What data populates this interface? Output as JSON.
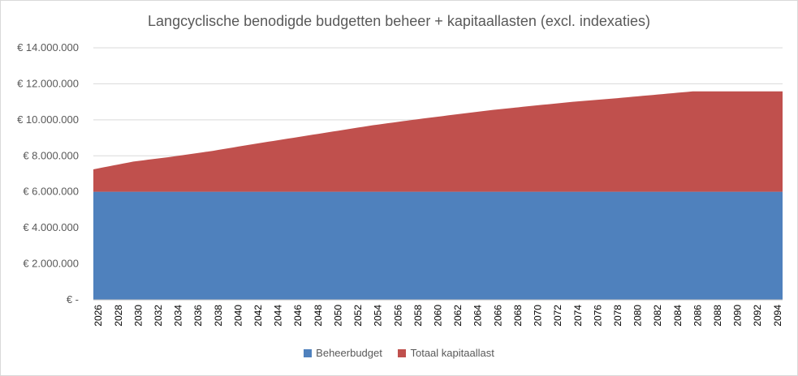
{
  "chart_data": {
    "type": "area",
    "stacked": true,
    "title": "Langcyclische benodigde budgetten beheer + kapitaallasten (excl. indexaties)",
    "xlabel": "",
    "ylabel": "",
    "x_start": 2026,
    "x_end": 2095,
    "x_tick_labels": [
      "2026",
      "2028",
      "2030",
      "2032",
      "2034",
      "2036",
      "2038",
      "2040",
      "2042",
      "2044",
      "2046",
      "2048",
      "2050",
      "2052",
      "2054",
      "2056",
      "2058",
      "2060",
      "2062",
      "2064",
      "2066",
      "2068",
      "2070",
      "2072",
      "2074",
      "2076",
      "2078",
      "2080",
      "2082",
      "2084",
      "2086",
      "2088",
      "2090",
      "2092",
      "2094"
    ],
    "y_tick_labels": [
      "€ -",
      "€ 2.000.000",
      "€ 4.000.000",
      "€ 6.000.000",
      "€ 8.000.000",
      "€ 10.000.000",
      "€ 12.000.000",
      "€ 14.000.000"
    ],
    "ylim": [
      0,
      14000000
    ],
    "grid": true,
    "legend_position": "bottom",
    "series": [
      {
        "name": "Beheerbudget",
        "color": "#4f81bd",
        "description": "constant",
        "values_by_year": {
          "2026": 6000000,
          "2095": 6000000
        }
      },
      {
        "name": "Totaal kapitaallast",
        "color": "#c0504d",
        "description": "stacked on top; total shown",
        "total_by_year": {
          "2026": 7250000,
          "2030": 7680000,
          "2034": 7960000,
          "2038": 8280000,
          "2042": 8650000,
          "2046": 9000000,
          "2050": 9350000,
          "2054": 9700000,
          "2058": 10000000,
          "2062": 10280000,
          "2066": 10550000,
          "2070": 10780000,
          "2074": 11000000,
          "2078": 11180000,
          "2082": 11380000,
          "2086": 11580000,
          "2090": 11580000,
          "2095": 11580000
        }
      }
    ]
  }
}
